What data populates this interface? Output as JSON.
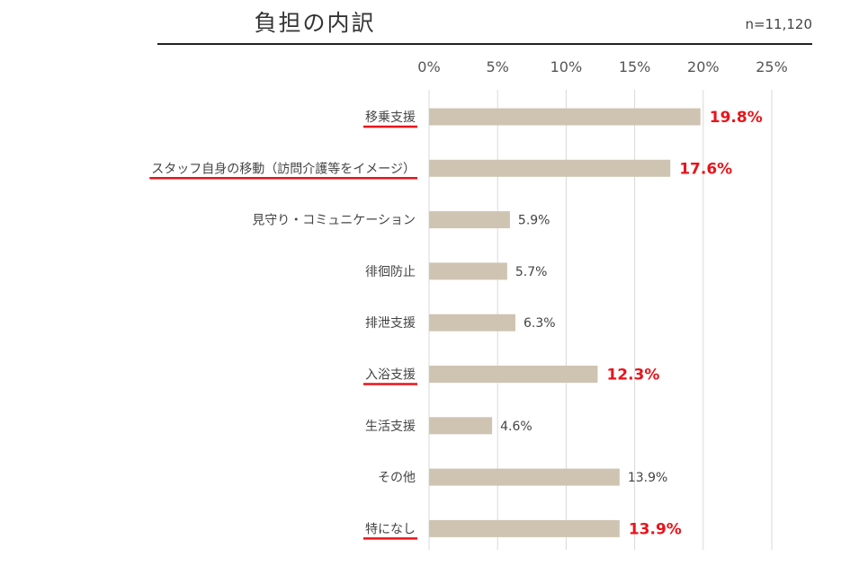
{
  "sample_size": "n=11,120",
  "chart_data": {
    "type": "bar",
    "orientation": "horizontal",
    "title": "負担の内訳",
    "xlim": [
      0,
      25
    ],
    "ticks": [
      "0%",
      "5%",
      "10%",
      "15%",
      "20%",
      "25%"
    ],
    "tick_values": [
      0,
      5,
      10,
      15,
      20,
      25
    ],
    "grid": true,
    "categories": [
      "移乗支援",
      "スタッフ自身の移動（訪問介護等をイメージ）",
      "見守り・コミュニケーション",
      "徘徊防止",
      "排泄支援",
      "入浴支援",
      "生活支援",
      "その他",
      "特になし"
    ],
    "values": [
      19.8,
      17.6,
      5.9,
      5.7,
      6.3,
      12.3,
      4.6,
      13.9,
      13.9
    ],
    "value_labels": [
      "19.8%",
      "17.6%",
      "5.9%",
      "5.7%",
      "6.3%",
      "12.3%",
      "4.6%",
      "13.9%",
      "13.9%"
    ],
    "highlighted": [
      true,
      true,
      false,
      false,
      false,
      true,
      false,
      false,
      true
    ],
    "colors": {
      "bar": "#cfc4b2",
      "highlight": "#e8141b",
      "grid": "#d9d9d9"
    }
  }
}
